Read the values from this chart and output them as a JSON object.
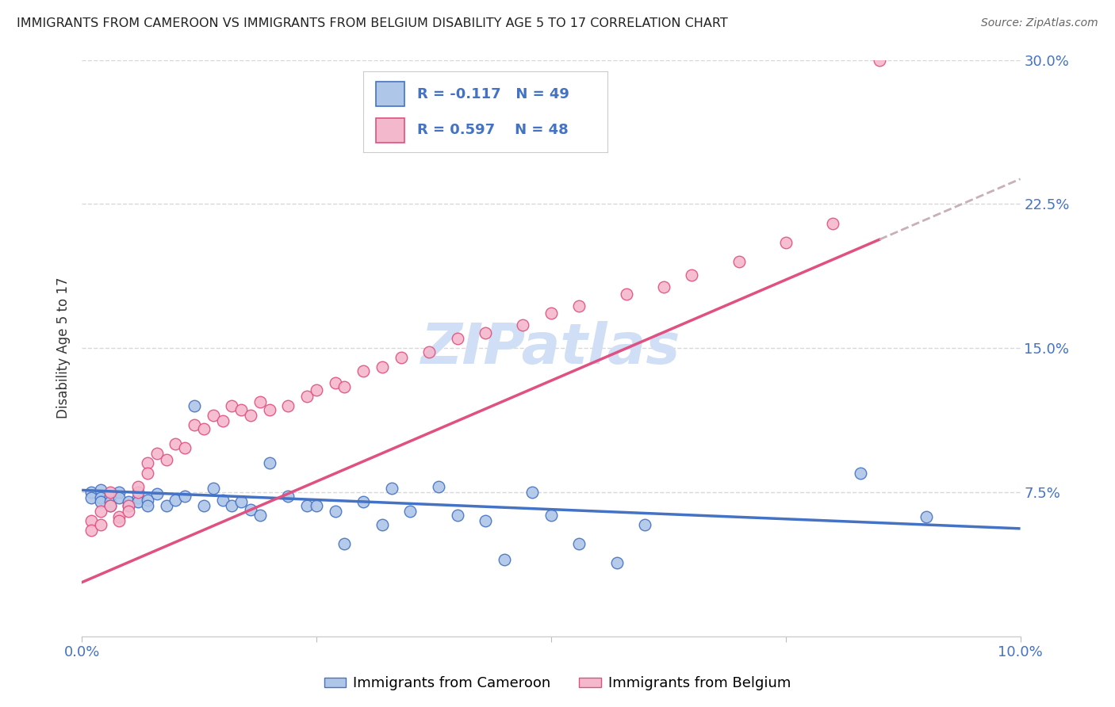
{
  "title": "IMMIGRANTS FROM CAMEROON VS IMMIGRANTS FROM BELGIUM DISABILITY AGE 5 TO 17 CORRELATION CHART",
  "source": "Source: ZipAtlas.com",
  "ylabel": "Disability Age 5 to 17",
  "xlim": [
    0.0,
    0.1
  ],
  "ylim": [
    0.0,
    0.3
  ],
  "color_cameroon": "#aec6e8",
  "color_belgium": "#f4b8cc",
  "color_regression_cameroon": "#4472c4",
  "color_regression_belgium": "#e05080",
  "color_regression_ext": "#c8b0b8",
  "watermark": "ZIPatlas",
  "watermark_color": "#d0dff5",
  "axis_color": "#4472c4",
  "grid_color": "#d8d8d8",
  "cameroon_x": [
    0.001,
    0.001,
    0.002,
    0.002,
    0.002,
    0.003,
    0.003,
    0.003,
    0.004,
    0.004,
    0.005,
    0.005,
    0.006,
    0.006,
    0.007,
    0.007,
    0.008,
    0.009,
    0.01,
    0.011,
    0.012,
    0.013,
    0.014,
    0.015,
    0.016,
    0.017,
    0.018,
    0.019,
    0.02,
    0.022,
    0.024,
    0.025,
    0.027,
    0.028,
    0.03,
    0.032,
    0.033,
    0.035,
    0.038,
    0.04,
    0.043,
    0.045,
    0.048,
    0.05,
    0.053,
    0.057,
    0.06,
    0.083,
    0.09
  ],
  "cameroon_y": [
    0.075,
    0.072,
    0.076,
    0.072,
    0.07,
    0.073,
    0.07,
    0.068,
    0.075,
    0.072,
    0.068,
    0.07,
    0.072,
    0.07,
    0.071,
    0.068,
    0.074,
    0.068,
    0.071,
    0.073,
    0.12,
    0.068,
    0.077,
    0.071,
    0.068,
    0.07,
    0.066,
    0.063,
    0.09,
    0.073,
    0.068,
    0.068,
    0.065,
    0.048,
    0.07,
    0.058,
    0.077,
    0.065,
    0.078,
    0.063,
    0.06,
    0.04,
    0.075,
    0.063,
    0.048,
    0.038,
    0.058,
    0.085,
    0.062
  ],
  "belgium_x": [
    0.001,
    0.001,
    0.002,
    0.002,
    0.003,
    0.003,
    0.004,
    0.004,
    0.005,
    0.005,
    0.006,
    0.006,
    0.007,
    0.007,
    0.008,
    0.009,
    0.01,
    0.011,
    0.012,
    0.013,
    0.014,
    0.015,
    0.016,
    0.017,
    0.018,
    0.019,
    0.02,
    0.022,
    0.024,
    0.025,
    0.027,
    0.028,
    0.03,
    0.032,
    0.034,
    0.037,
    0.04,
    0.043,
    0.047,
    0.05,
    0.053,
    0.058,
    0.062,
    0.065,
    0.07,
    0.075,
    0.08,
    0.085
  ],
  "belgium_y": [
    0.06,
    0.055,
    0.065,
    0.058,
    0.075,
    0.068,
    0.062,
    0.06,
    0.068,
    0.065,
    0.075,
    0.078,
    0.09,
    0.085,
    0.095,
    0.092,
    0.1,
    0.098,
    0.11,
    0.108,
    0.115,
    0.112,
    0.12,
    0.118,
    0.115,
    0.122,
    0.118,
    0.12,
    0.125,
    0.128,
    0.132,
    0.13,
    0.138,
    0.14,
    0.145,
    0.148,
    0.155,
    0.158,
    0.162,
    0.168,
    0.172,
    0.178,
    0.182,
    0.188,
    0.195,
    0.205,
    0.215,
    0.3
  ]
}
